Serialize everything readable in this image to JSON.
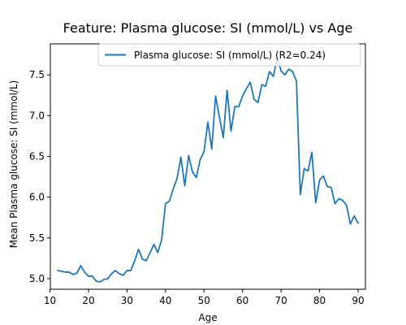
{
  "chart_data": {
    "type": "line",
    "title": "Feature: Plasma glucose: SI (mmol/L) vs Age",
    "xlabel": "Age",
    "ylabel": "Mean Plasma glucose: SI (mmol/L)",
    "xlim": [
      10.1,
      91.9
    ],
    "ylim": [
      4.87,
      7.88
    ],
    "xticks": [
      10,
      20,
      30,
      40,
      50,
      60,
      70,
      80,
      90
    ],
    "yticks": [
      5.0,
      5.5,
      6.0,
      6.5,
      7.0,
      7.5
    ],
    "ytick_labels": [
      "5.0",
      "5.5",
      "6.0",
      "6.5",
      "7.0",
      "7.5"
    ],
    "grid": false,
    "legend": {
      "placement": "top-right"
    },
    "series": [
      {
        "name": "Plasma glucose: SI (mmol/L) (R2=0.24)",
        "color": "#1f77b4",
        "x": [
          12,
          13,
          14,
          15,
          16,
          17,
          18,
          19,
          20,
          21,
          22,
          23,
          24,
          25,
          26,
          27,
          28,
          29,
          30,
          31,
          32,
          33,
          34,
          35,
          36,
          37,
          38,
          39,
          40,
          41,
          42,
          43,
          44,
          45,
          46,
          47,
          48,
          49,
          50,
          51,
          52,
          53,
          54,
          55,
          56,
          57,
          58,
          59,
          60,
          61,
          62,
          63,
          64,
          65,
          66,
          67,
          68,
          69,
          70,
          71,
          72,
          73,
          74,
          75,
          76,
          77,
          78,
          79,
          80,
          81,
          82,
          83,
          84,
          85,
          86,
          87,
          88,
          89,
          90
        ],
        "y": [
          5.1,
          5.09,
          5.08,
          5.08,
          5.05,
          5.07,
          5.16,
          5.08,
          5.03,
          5.03,
          4.97,
          4.96,
          4.99,
          5.0,
          5.06,
          5.1,
          5.06,
          5.04,
          5.1,
          5.1,
          5.22,
          5.36,
          5.24,
          5.22,
          5.32,
          5.42,
          5.32,
          5.48,
          5.92,
          5.95,
          6.1,
          6.23,
          6.49,
          6.14,
          6.51,
          6.31,
          6.24,
          6.46,
          6.56,
          6.92,
          6.59,
          7.24,
          6.98,
          6.73,
          7.31,
          6.81,
          7.11,
          7.11,
          7.24,
          7.33,
          7.41,
          7.2,
          7.16,
          7.38,
          7.36,
          7.54,
          7.48,
          7.71,
          7.55,
          7.5,
          7.57,
          7.54,
          7.42,
          6.03,
          6.35,
          6.32,
          6.55,
          5.93,
          6.21,
          6.26,
          6.13,
          6.12,
          5.92,
          5.98,
          5.96,
          5.9,
          5.67,
          5.77,
          5.68
        ]
      }
    ]
  }
}
